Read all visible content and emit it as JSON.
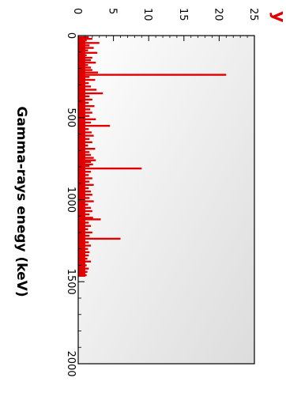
{
  "chart_data": {
    "type": "bar",
    "title_fragment": "y",
    "xlabel": "Gamma-rays enegy (keV)",
    "ylabel": "",
    "xlim": [
      0,
      2000
    ],
    "ylim": [
      0,
      25
    ],
    "x_ticks": [
      0,
      500,
      1000,
      1500,
      2000
    ],
    "y_ticks": [
      0,
      5,
      10,
      15,
      20,
      25
    ],
    "bar_color": "#e00000",
    "series": [
      {
        "values": [
          [
            10,
            1.5
          ],
          [
            20,
            2.0
          ],
          [
            30,
            1.2
          ],
          [
            45,
            3.0
          ],
          [
            60,
            1.6
          ],
          [
            75,
            2.2
          ],
          [
            90,
            1.4
          ],
          [
            105,
            2.7
          ],
          [
            120,
            1.2
          ],
          [
            135,
            2.0
          ],
          [
            150,
            1.8
          ],
          [
            165,
            2.5
          ],
          [
            180,
            1.4
          ],
          [
            195,
            1.8
          ],
          [
            210,
            2.0
          ],
          [
            225,
            2.8
          ],
          [
            239,
            21.0
          ],
          [
            252,
            1.6
          ],
          [
            270,
            2.4
          ],
          [
            290,
            1.5
          ],
          [
            310,
            1.8
          ],
          [
            330,
            2.6
          ],
          [
            352,
            3.5
          ],
          [
            370,
            1.6
          ],
          [
            390,
            2.0
          ],
          [
            410,
            1.5
          ],
          [
            430,
            2.3
          ],
          [
            450,
            1.7
          ],
          [
            470,
            2.0
          ],
          [
            490,
            1.6
          ],
          [
            510,
            2.5
          ],
          [
            530,
            1.8
          ],
          [
            550,
            4.5
          ],
          [
            570,
            1.5
          ],
          [
            590,
            1.9
          ],
          [
            610,
            2.2
          ],
          [
            630,
            1.6
          ],
          [
            650,
            2.0
          ],
          [
            670,
            1.4
          ],
          [
            690,
            2.4
          ],
          [
            710,
            1.6
          ],
          [
            727,
            1.8
          ],
          [
            745,
            2.2
          ],
          [
            760,
            2.5
          ],
          [
            770,
            1.8
          ],
          [
            785,
            2.1
          ],
          [
            795,
            1.6
          ],
          [
            810,
            9.0
          ],
          [
            830,
            1.8
          ],
          [
            850,
            1.5
          ],
          [
            870,
            2.0
          ],
          [
            890,
            1.6
          ],
          [
            910,
            2.2
          ],
          [
            930,
            1.5
          ],
          [
            950,
            1.8
          ],
          [
            970,
            2.0
          ],
          [
            990,
            1.6
          ],
          [
            1010,
            2.2
          ],
          [
            1030,
            1.4
          ],
          [
            1050,
            1.8
          ],
          [
            1070,
            2.0
          ],
          [
            1090,
            1.6
          ],
          [
            1110,
            2.1
          ],
          [
            1120,
            3.2
          ],
          [
            1140,
            1.5
          ],
          [
            1160,
            1.8
          ],
          [
            1180,
            1.4
          ],
          [
            1200,
            2.0
          ],
          [
            1220,
            1.6
          ],
          [
            1238,
            6.0
          ],
          [
            1260,
            1.5
          ],
          [
            1280,
            1.8
          ],
          [
            1300,
            1.4
          ],
          [
            1320,
            1.6
          ],
          [
            1340,
            1.5
          ],
          [
            1360,
            1.3
          ],
          [
            1377,
            1.8
          ],
          [
            1400,
            1.2
          ],
          [
            1420,
            1.5
          ],
          [
            1440,
            1.3
          ],
          [
            1460,
            1.2
          ]
        ]
      }
    ]
  }
}
